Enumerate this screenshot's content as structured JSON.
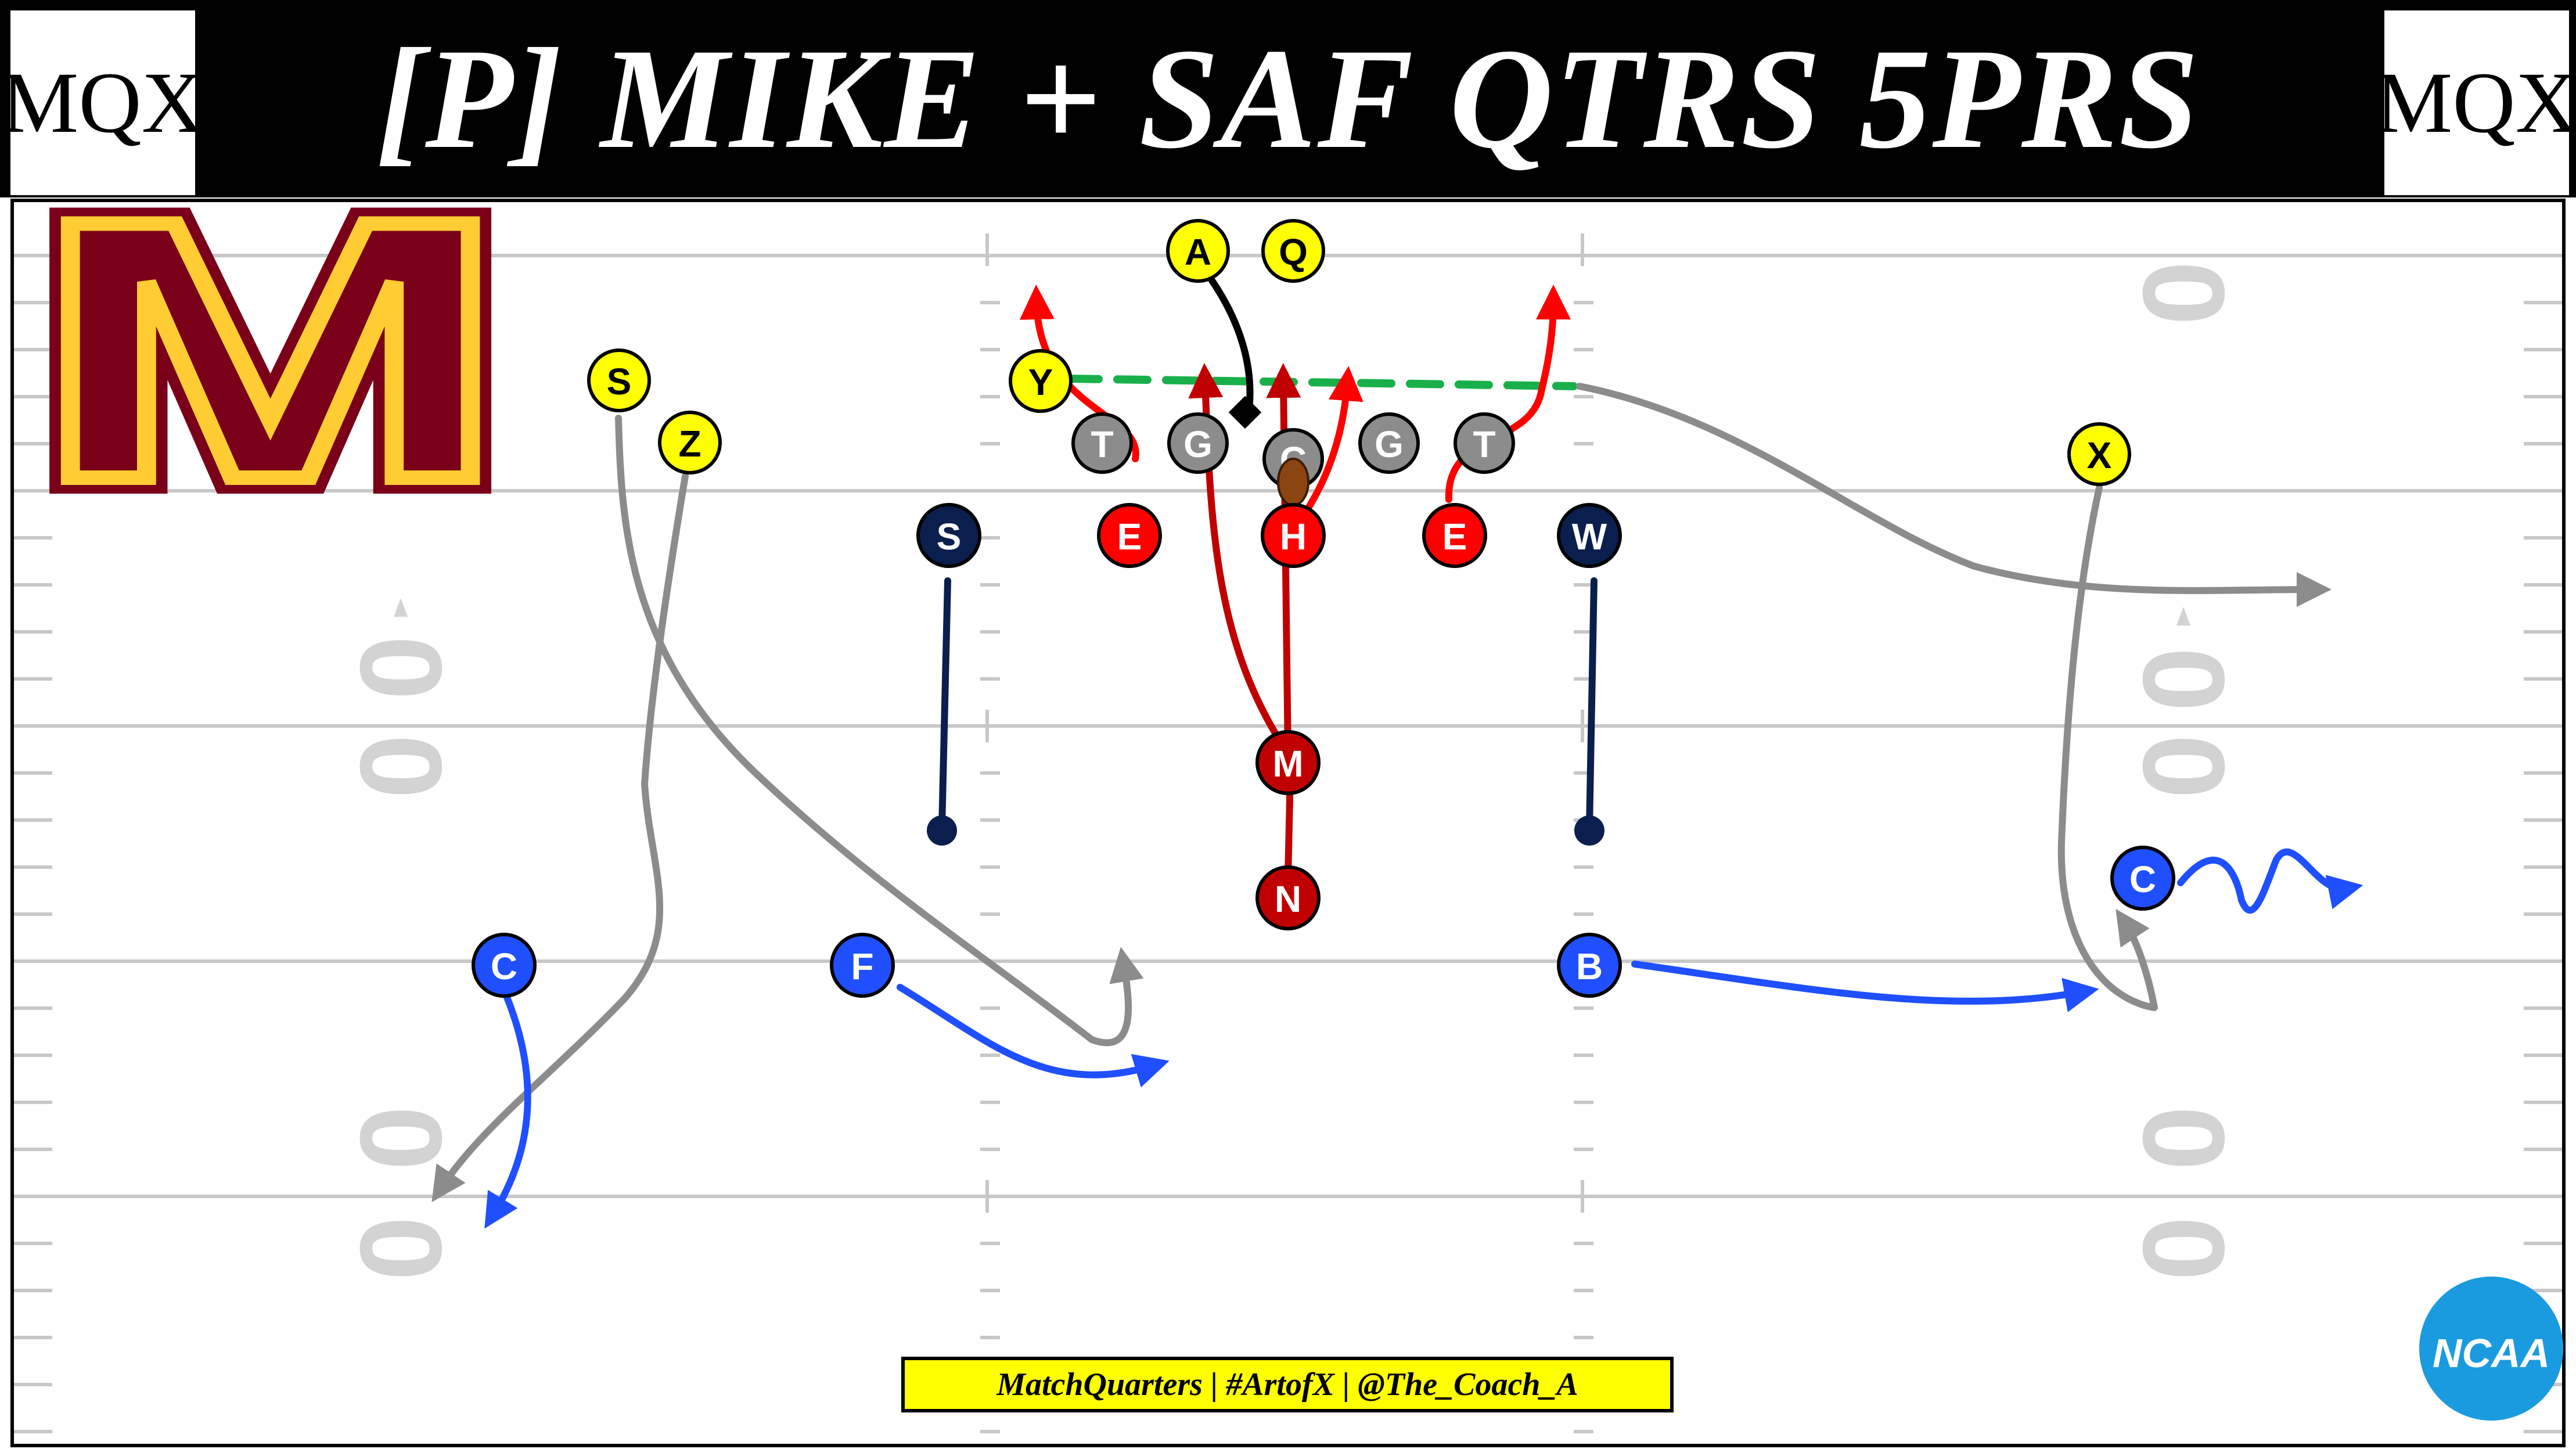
{
  "title": "[P] MIKE + SAF QTRS 5PRS",
  "brand_left": "MQX",
  "brand_right": "MQX",
  "footer_credit": "MatchQuarters | #ArtofX | @The_Coach_A",
  "team_logo": {
    "letter": "M",
    "colors": {
      "maroon": "#7a0019",
      "gold": "#ffcc33"
    }
  },
  "league_logo": {
    "text": "NCAA",
    "color": "#1a9be0"
  },
  "field": {
    "yard_number": "0",
    "colors": {
      "line": "#c8c8c8",
      "number": "#d3d3d3"
    }
  },
  "colors": {
    "offense": "#ffff00",
    "lineman": "#8c8c8c",
    "rusher": "#ff0000",
    "mike": "#c00000",
    "linebacker": "#0b1f4e",
    "coverage": "#1f4fff",
    "route": "#8c8c8c",
    "coverage_path": "#1f4fff",
    "pressure_path": "#ff0000",
    "mike_path": "#c00000",
    "drop_path": "#0b1f4e",
    "protection": "#19b04b",
    "qb_motion": "#000000"
  },
  "offense": [
    {
      "id": "A",
      "label": "A"
    },
    {
      "id": "Q",
      "label": "Q"
    },
    {
      "id": "Y",
      "label": "Y"
    },
    {
      "id": "S",
      "label": "S"
    },
    {
      "id": "Z",
      "label": "Z"
    },
    {
      "id": "X",
      "label": "X"
    }
  ],
  "linemen": [
    {
      "id": "LT",
      "label": "T"
    },
    {
      "id": "LG",
      "label": "G"
    },
    {
      "id": "C",
      "label": "C"
    },
    {
      "id": "RG",
      "label": "G"
    },
    {
      "id": "RT",
      "label": "T"
    }
  ],
  "defense": [
    {
      "id": "E1",
      "label": "E",
      "role": "rusher"
    },
    {
      "id": "H",
      "label": "H",
      "role": "rusher"
    },
    {
      "id": "E2",
      "label": "E",
      "role": "rusher"
    },
    {
      "id": "M",
      "label": "M",
      "role": "mike"
    },
    {
      "id": "N",
      "label": "N",
      "role": "mike"
    },
    {
      "id": "SLB",
      "label": "S",
      "role": "linebacker"
    },
    {
      "id": "WLB",
      "label": "W",
      "role": "linebacker"
    },
    {
      "id": "CL",
      "label": "C",
      "role": "coverage"
    },
    {
      "id": "F",
      "label": "F",
      "role": "coverage"
    },
    {
      "id": "B",
      "label": "B",
      "role": "coverage"
    },
    {
      "id": "CR",
      "label": "C",
      "role": "coverage"
    }
  ]
}
